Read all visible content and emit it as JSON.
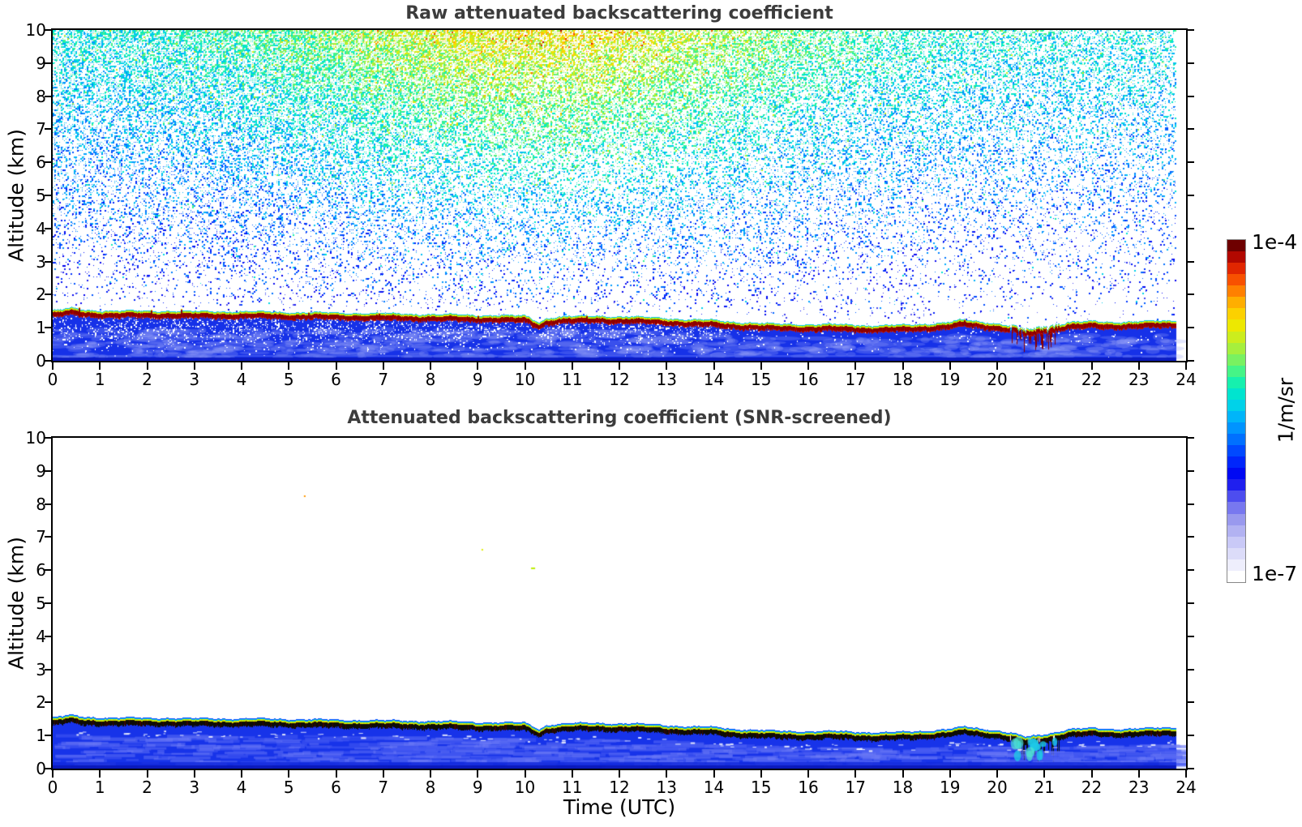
{
  "figure": {
    "background": "#ffffff",
    "title_color": "#3c3c3c",
    "frame_color": "#000000"
  },
  "colorbar": {
    "max_label": "1e-4",
    "min_label": "1e-7",
    "unit_label": "1/m/sr",
    "steps": 30
  },
  "chart_data": {
    "type": "heatmap",
    "content_summary": "Ceilometer attenuated backscatter time-height curtain plots. Top: raw signal with speckle noise above the aerosol boundary layer (noise value rises with altitude and peaks near midday, giving yellow-orange tones aloft between ~7 and 14 UTC, cyan-blue elsewhere). Bottom: SNR-screened signal, leaving only the aerosol layer below ~1.5 km capped by a saturated backscatter line.",
    "panels": [
      {
        "title": "Raw attenuated backscattering coefficient",
        "ylabel": "Altitude (km)",
        "content": "White background; colored speckle noise above the layer top; solid blue aerosol layer with white speckle holes below a dark-red saturated cap line."
      },
      {
        "title": "Attenuated backscattering coefficient (SNR-screened)",
        "ylabel": "Altitude (km)",
        "xlabel": "Time (UTC)",
        "content": "White (screened) above the layer; solid blue aerosol layer capped by a nearly black saturated line with thin yellow-green and cyan fringes."
      }
    ],
    "x": {
      "label": "Time (UTC)",
      "min": 0,
      "max": 24,
      "ticks": [
        0,
        1,
        2,
        3,
        4,
        5,
        6,
        7,
        8,
        9,
        10,
        11,
        12,
        13,
        14,
        15,
        16,
        17,
        18,
        19,
        20,
        21,
        22,
        23,
        24
      ]
    },
    "y": {
      "label": "Altitude (km)",
      "min": 0,
      "max": 10,
      "ticks": [
        0,
        1,
        2,
        3,
        4,
        5,
        6,
        7,
        8,
        9,
        10
      ]
    },
    "z": {
      "label": "1/m/sr",
      "scale": "log",
      "min_label": "1e-7",
      "max_label": "1e-4"
    },
    "data_end_hour": 23.8,
    "layer_top_km": {
      "t": [
        0,
        0.4,
        0.6,
        1,
        1.5,
        2,
        2.5,
        3,
        4,
        5,
        6,
        7,
        8,
        9,
        10,
        10.3,
        10.45,
        10.7,
        11,
        11.5,
        12,
        12.5,
        13,
        13.5,
        14,
        14.5,
        15,
        15.5,
        16,
        16.5,
        17,
        17.5,
        18,
        18.5,
        19,
        19.3,
        19.6,
        20,
        20.3,
        20.6,
        20.9,
        21.2,
        21.5,
        22,
        22.5,
        23,
        23.4,
        23.8
      ],
      "z": [
        1.45,
        1.52,
        1.47,
        1.45,
        1.44,
        1.43,
        1.44,
        1.42,
        1.42,
        1.4,
        1.38,
        1.36,
        1.34,
        1.31,
        1.29,
        1.1,
        1.22,
        1.26,
        1.27,
        1.29,
        1.27,
        1.25,
        1.22,
        1.17,
        1.16,
        1.1,
        1.06,
        1.04,
        1.03,
        1.03,
        1.02,
        0.99,
        1.01,
        1.05,
        1.1,
        1.17,
        1.12,
        1.06,
        0.98,
        0.86,
        0.92,
        1.0,
        1.1,
        1.12,
        1.1,
        1.12,
        1.13,
        1.15
      ]
    },
    "cap_spikes": [
      {
        "t": 0.55,
        "dh": 0.1
      },
      {
        "t": 2.08,
        "dh": 0.08
      },
      {
        "t": 2.72,
        "dh": 0.12
      },
      {
        "t": 5.4,
        "dh": 0.05
      },
      {
        "t": 6.9,
        "dh": 0.06
      },
      {
        "t": 9.0,
        "dh": 0.05
      },
      {
        "t": 11.3,
        "dh": 0.06
      },
      {
        "t": 12.4,
        "dh": 0.05
      },
      {
        "t": 19.3,
        "dh": 0.06
      }
    ],
    "dip_interval_hours": [
      20.25,
      21.35
    ],
    "residual_specks": [
      {
        "t": 5.32,
        "alt_km": 8.26,
        "color": "#ff9900",
        "w": 2
      },
      {
        "t": 9.08,
        "alt_km": 6.64,
        "color": "#e0ee00",
        "w": 2
      },
      {
        "t": 10.13,
        "alt_km": 6.08,
        "color": "#bbee00",
        "w": 5
      }
    ],
    "noise_model": {
      "density_alt_base": 0.05,
      "density_alt_gain": 0.85,
      "density_alt_pow": 1.6,
      "density_time_base": 0.55,
      "density_time_gain": 0.55,
      "density_time_center": 8,
      "density_time_sigma": 9,
      "value_base": 0.27,
      "value_alt_gain": 0.27,
      "value_midday_gain": 0.22,
      "midday_center": 10.5,
      "midday_sigma": 5.5,
      "value_jitter": 0.18
    },
    "layer_colors": {
      "interior_blue": "#1631e8",
      "pale_patch": "rgba(150,162,248,0.28)",
      "raw_cap_core": "#8b0000",
      "screened_cap_core": "#0d0c06",
      "fringe_yellow": "#e8e400",
      "fringe_green": "#c0e000",
      "fringe_cyan": "#00c8f0"
    },
    "colormap_stops": [
      [
        0.0,
        "#ffffff"
      ],
      [
        0.05,
        "#e6e6fb"
      ],
      [
        0.11,
        "#c6c6f6"
      ],
      [
        0.17,
        "#9b9bee"
      ],
      [
        0.22,
        "#6b6bf0"
      ],
      [
        0.26,
        "#3333ee"
      ],
      [
        0.3,
        "#0000f0"
      ],
      [
        0.36,
        "#0033ff"
      ],
      [
        0.42,
        "#0077ff"
      ],
      [
        0.47,
        "#00aaff"
      ],
      [
        0.52,
        "#00d4e8"
      ],
      [
        0.57,
        "#00eec0"
      ],
      [
        0.62,
        "#44f488"
      ],
      [
        0.67,
        "#90f050"
      ],
      [
        0.72,
        "#c8ee20"
      ],
      [
        0.76,
        "#eee800"
      ],
      [
        0.8,
        "#ffcc00"
      ],
      [
        0.84,
        "#ffa000"
      ],
      [
        0.88,
        "#ff6600"
      ],
      [
        0.92,
        "#ee3300"
      ],
      [
        0.95,
        "#cc1100"
      ],
      [
        0.98,
        "#990000"
      ],
      [
        1.0,
        "#6e0000"
      ]
    ],
    "colorbar_steps": 30
  }
}
